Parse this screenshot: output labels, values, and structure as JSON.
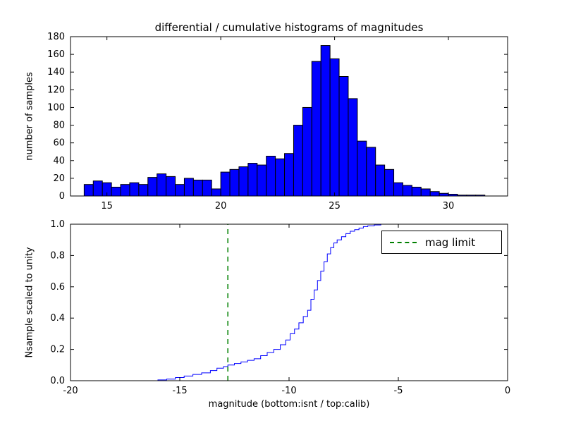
{
  "figure": {
    "background": "#ffffff",
    "frame_color": "#000000"
  },
  "chart_data": [
    {
      "type": "bar",
      "name": "differential-histogram",
      "title": "differential / cumulative histograms of magnitudes",
      "xlabel": "",
      "ylabel": "number of samples",
      "bar_color": "#0000ff",
      "bar_edge_color": "#000000",
      "bin_start": 14.0,
      "bin_width": 0.4,
      "counts": [
        13,
        17,
        15,
        10,
        13,
        15,
        13,
        21,
        25,
        22,
        13,
        20,
        18,
        18,
        8,
        27,
        30,
        33,
        37,
        35,
        45,
        42,
        48,
        80,
        100,
        152,
        170,
        155,
        135,
        110,
        62,
        55,
        35,
        30,
        15,
        12,
        10,
        8,
        5,
        3,
        2,
        1,
        1,
        1
      ],
      "xlim": [
        13.4,
        32.6
      ],
      "ylim": [
        0,
        180
      ],
      "xticks": [
        15,
        20,
        25,
        30
      ],
      "xtick_labels": [
        "15",
        "20",
        "25",
        "30"
      ],
      "yticks": [
        0,
        20,
        40,
        60,
        80,
        100,
        120,
        140,
        160,
        180
      ],
      "ytick_labels": [
        "0",
        "20",
        "40",
        "60",
        "80",
        "100",
        "120",
        "140",
        "160",
        "180"
      ],
      "grid": false
    },
    {
      "type": "line",
      "name": "cumulative-histogram",
      "title": "",
      "xlabel": "magnitude (bottom:isnt / top:calib)",
      "ylabel": "Nsample scaled to unity",
      "line_color": "#0000ff",
      "line_style": "step",
      "x": [
        -16.4,
        -16.0,
        -15.6,
        -15.2,
        -14.8,
        -14.4,
        -14.0,
        -13.6,
        -13.3,
        -13.0,
        -12.8,
        -12.5,
        -12.2,
        -11.9,
        -11.6,
        -11.3,
        -11.0,
        -10.7,
        -10.4,
        -10.15,
        -9.95,
        -9.75,
        -9.55,
        -9.35,
        -9.15,
        -9.0,
        -8.85,
        -8.7,
        -8.55,
        -8.4,
        -8.25,
        -8.1,
        -7.95,
        -7.8,
        -7.6,
        -7.4,
        -7.2,
        -7.0,
        -6.8,
        -6.6,
        -6.4,
        -6.1,
        -5.8,
        0.0
      ],
      "y": [
        0.0,
        0.005,
        0.01,
        0.02,
        0.03,
        0.04,
        0.05,
        0.065,
        0.08,
        0.09,
        0.1,
        0.11,
        0.12,
        0.13,
        0.14,
        0.16,
        0.18,
        0.2,
        0.23,
        0.26,
        0.3,
        0.33,
        0.37,
        0.41,
        0.45,
        0.52,
        0.58,
        0.64,
        0.7,
        0.76,
        0.81,
        0.85,
        0.88,
        0.9,
        0.92,
        0.94,
        0.955,
        0.965,
        0.975,
        0.985,
        0.99,
        0.995,
        1.0,
        1.0
      ],
      "xlim": [
        -20,
        0
      ],
      "ylim": [
        0,
        1
      ],
      "xticks": [
        -20,
        -15,
        -10,
        -5,
        0
      ],
      "xtick_labels": [
        "-20",
        "-15",
        "-10",
        "-5",
        "0"
      ],
      "yticks": [
        0,
        0.2,
        0.4,
        0.6,
        0.8,
        1.0
      ],
      "ytick_labels": [
        "0.0",
        "0.2",
        "0.4",
        "0.6",
        "0.8",
        "1.0"
      ],
      "vline": {
        "x": -12.8,
        "color": "#008000",
        "style": "dashed",
        "label": "mag limit"
      },
      "legend": {
        "position": "upper right",
        "entries": [
          {
            "label": "mag limit",
            "color": "#008000",
            "style": "dashed"
          }
        ]
      },
      "grid": false
    }
  ]
}
